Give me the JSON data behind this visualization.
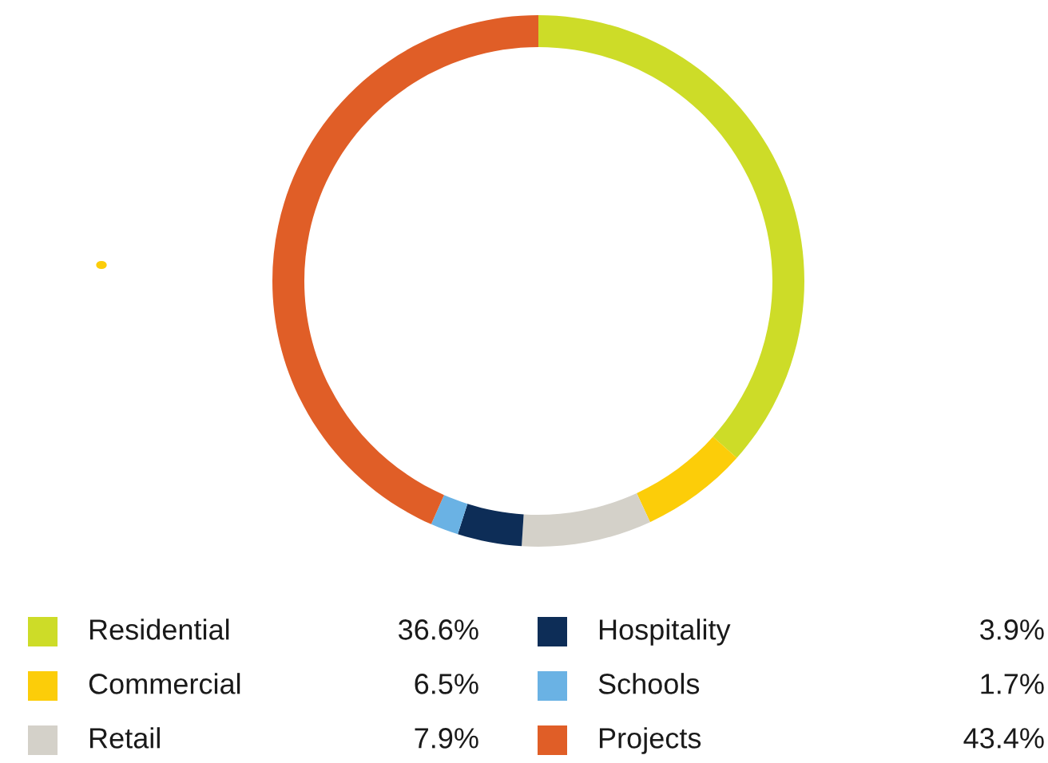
{
  "chart_data": {
    "type": "donut",
    "categories": [
      "Residential",
      "Commercial",
      "Retail",
      "Hospitality",
      "Schools",
      "Projects"
    ],
    "values": [
      36.6,
      6.5,
      7.9,
      3.9,
      1.7,
      43.4
    ],
    "colors": [
      "#cddc28",
      "#fccd09",
      "#d4d1c9",
      "#0d2d57",
      "#6ab2e4",
      "#e05e27"
    ],
    "value_labels": [
      "36.6%",
      "6.5%",
      "7.9%",
      "3.9%",
      "1.7%",
      "43.4%"
    ],
    "legend": "bottom"
  }
}
